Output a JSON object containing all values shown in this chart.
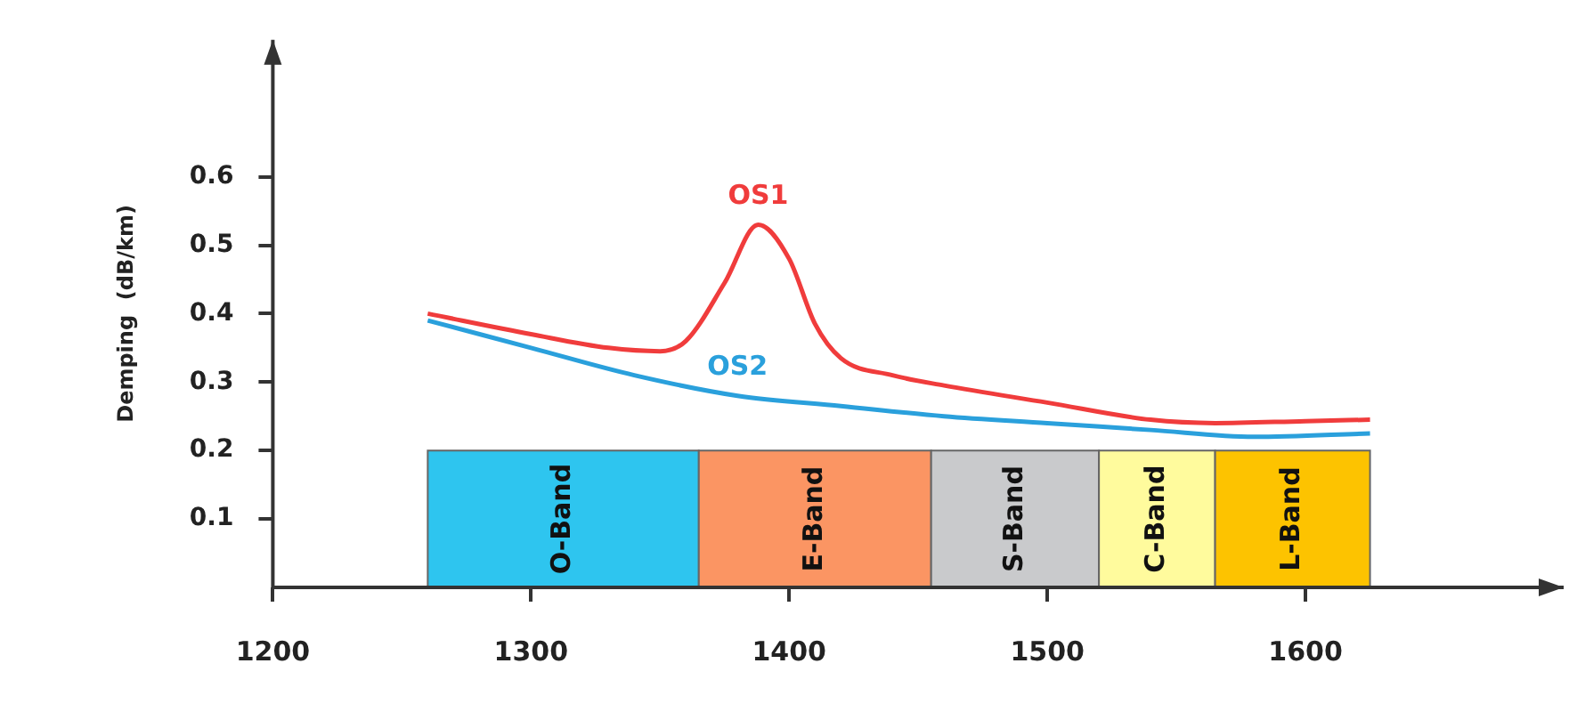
{
  "chart_data": {
    "type": "line",
    "ylabel": "Demping  (dB/km)",
    "xlim": [
      1200,
      1700
    ],
    "xticks": [
      1200,
      1300,
      1400,
      1500,
      1600
    ],
    "ylim": [
      0,
      0.8
    ],
    "yticks": [
      0.1,
      0.2,
      0.3,
      0.4,
      0.5,
      0.6
    ],
    "grid": false,
    "legend": false,
    "marker": "none",
    "line_style": "solid",
    "series": [
      {
        "name": "OS1",
        "color": "#f03c3c",
        "x": [
          1260,
          1300,
          1330,
          1350,
          1360,
          1375,
          1388,
          1400,
          1410,
          1420,
          1440,
          1460,
          1500,
          1540,
          1565,
          1600,
          1625
        ],
        "values": [
          0.4,
          0.37,
          0.35,
          0.345,
          0.36,
          0.445,
          0.53,
          0.48,
          0.385,
          0.335,
          0.31,
          0.295,
          0.27,
          0.245,
          0.24,
          0.243,
          0.245
        ]
      },
      {
        "name": "OS2",
        "color": "#2aa0dc",
        "x": [
          1260,
          1300,
          1340,
          1380,
          1420,
          1460,
          1500,
          1540,
          1580,
          1625
        ],
        "values": [
          0.39,
          0.35,
          0.31,
          0.28,
          0.265,
          0.25,
          0.24,
          0.23,
          0.22,
          0.225
        ]
      }
    ],
    "bands": [
      {
        "axis": "x",
        "from": 1260,
        "to": 1365,
        "label": "O-Band",
        "color": "#2ec5ef"
      },
      {
        "axis": "x",
        "from": 1365,
        "to": 1455,
        "label": "E-Band",
        "color": "#fb9563"
      },
      {
        "axis": "x",
        "from": 1455,
        "to": 1520,
        "label": "S-Band",
        "color": "#c9cacc"
      },
      {
        "axis": "x",
        "from": 1520,
        "to": 1565,
        "label": "C-Band",
        "color": "#fffb9d"
      },
      {
        "axis": "x",
        "from": 1565,
        "to": 1625,
        "label": "L-Band",
        "color": "#fdc300"
      }
    ]
  }
}
